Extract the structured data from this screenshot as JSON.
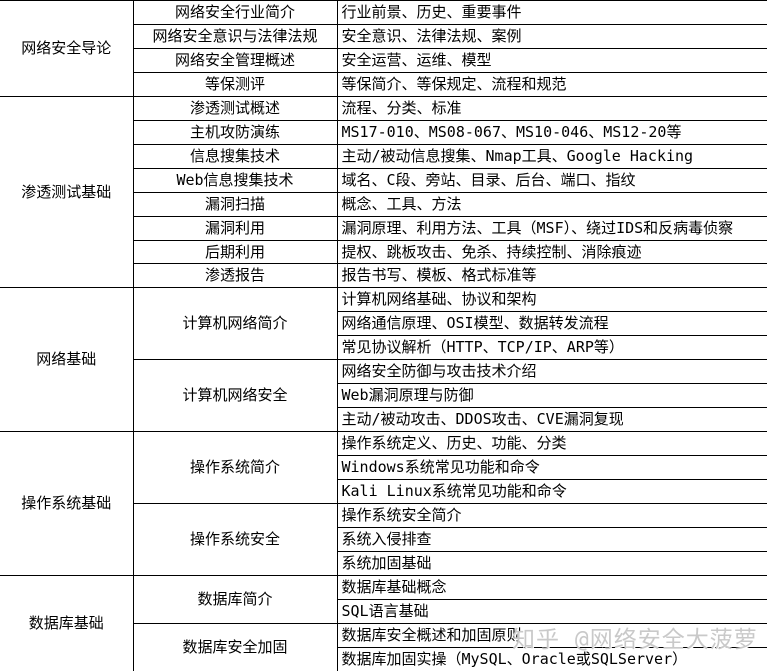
{
  "table": {
    "sections": [
      {
        "category": "网络安全导论",
        "topics": [
          {
            "title": "网络安全行业简介",
            "details": [
              "行业前景、历史、重要事件"
            ]
          },
          {
            "title": "网络安全意识与法律法规",
            "details": [
              "安全意识、法律法规、案例"
            ]
          },
          {
            "title": "网络安全管理概述",
            "details": [
              "安全运营、运维、模型"
            ]
          },
          {
            "title": "等保测评",
            "details": [
              "等保简介、等保规定、流程和规范"
            ]
          }
        ]
      },
      {
        "category": "渗透测试基础",
        "topics": [
          {
            "title": "渗透测试概述",
            "details": [
              "流程、分类、标准"
            ]
          },
          {
            "title": "主机攻防演练",
            "details": [
              "MS17-010、MS08-067、MS10-046、MS12-20等"
            ]
          },
          {
            "title": "信息搜集技术",
            "details": [
              "主动/被动信息搜集、Nmap工具、Google Hacking"
            ]
          },
          {
            "title": "Web信息搜集技术",
            "details": [
              "域名、C段、旁站、目录、后台、端口、指纹"
            ]
          },
          {
            "title": "漏洞扫描",
            "details": [
              "概念、工具、方法"
            ]
          },
          {
            "title": "漏洞利用",
            "details": [
              "漏洞原理、利用方法、工具（MSF）、绕过IDS和反病毒侦察"
            ]
          },
          {
            "title": "后期利用",
            "details": [
              "提权、跳板攻击、免杀、持续控制、消除痕迹"
            ]
          },
          {
            "title": "渗透报告",
            "details": [
              "报告书写、模板、格式标准等"
            ]
          }
        ]
      },
      {
        "category": "网络基础",
        "topics": [
          {
            "title": "计算机网络简介",
            "details": [
              "计算机网络基础、协议和架构",
              "网络通信原理、OSI模型、数据转发流程",
              "常见协议解析（HTTP、TCP/IP、ARP等）"
            ]
          },
          {
            "title": "计算机网络安全",
            "details": [
              "网络安全防御与攻击技术介绍",
              "Web漏洞原理与防御",
              "主动/被动攻击、DDOS攻击、CVE漏洞复现"
            ]
          }
        ]
      },
      {
        "category": "操作系统基础",
        "topics": [
          {
            "title": "操作系统简介",
            "details": [
              "操作系统定义、历史、功能、分类",
              "Windows系统常见功能和命令",
              "Kali Linux系统常见功能和命令"
            ]
          },
          {
            "title": "操作系统安全",
            "details": [
              "操作系统安全简介",
              "系统入侵排查",
              "系统加固基础"
            ]
          }
        ]
      },
      {
        "category": "数据库基础",
        "topics": [
          {
            "title": "数据库简介",
            "details": [
              "数据库基础概念",
              "SQL语言基础"
            ]
          },
          {
            "title": "数据库安全加固",
            "details": [
              "数据库安全概述和加固原则",
              "数据库加固实操（MySQL、Oracle或SQLServer）"
            ]
          }
        ]
      }
    ]
  },
  "watermark": {
    "text": "知乎 @网络安全大菠萝"
  },
  "colors": {
    "border": "#000000",
    "text": "#000000",
    "watermark": "#c9c9c9",
    "background": "#ffffff"
  }
}
